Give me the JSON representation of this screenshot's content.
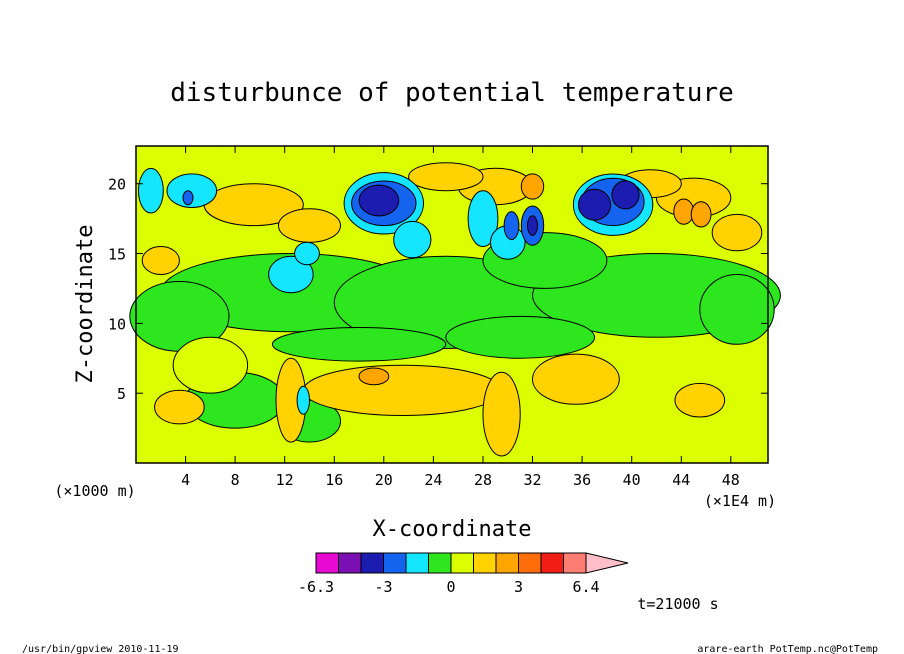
{
  "chart_data": {
    "type": "heatmap",
    "title": "disturbunce of potential temperature",
    "xlabel": "X-coordinate",
    "ylabel": "Z-coordinate",
    "x_unit": "(×1000 m)",
    "x_scale_note": "(×1E4 m)",
    "xlim": [
      0,
      51
    ],
    "ylim": [
      0,
      22.7
    ],
    "x_ticks": [
      4,
      8,
      12,
      16,
      20,
      24,
      28,
      32,
      36,
      40,
      44,
      48
    ],
    "y_ticks": [
      5,
      10,
      15,
      20
    ],
    "colorbar": {
      "colors": [
        "#e60ad2",
        "#7a10b4",
        "#1c1cb0",
        "#1464f0",
        "#14e6ff",
        "#2de61e",
        "#dcff00",
        "#ffd200",
        "#ffa500",
        "#ff6e0a",
        "#f01e14",
        "#ff7d73",
        "#ffbec8"
      ],
      "tick_labels": [
        "-6.3",
        "-3",
        "0",
        "3",
        "6.4"
      ],
      "extend": "max"
    },
    "time_label": "t=21000 s",
    "background_level": "0.5"
  },
  "footer": {
    "left": "/usr/bin/gpview   2010-11-19",
    "right": "arare-earth_PotTemp.nc@PotTemp"
  }
}
